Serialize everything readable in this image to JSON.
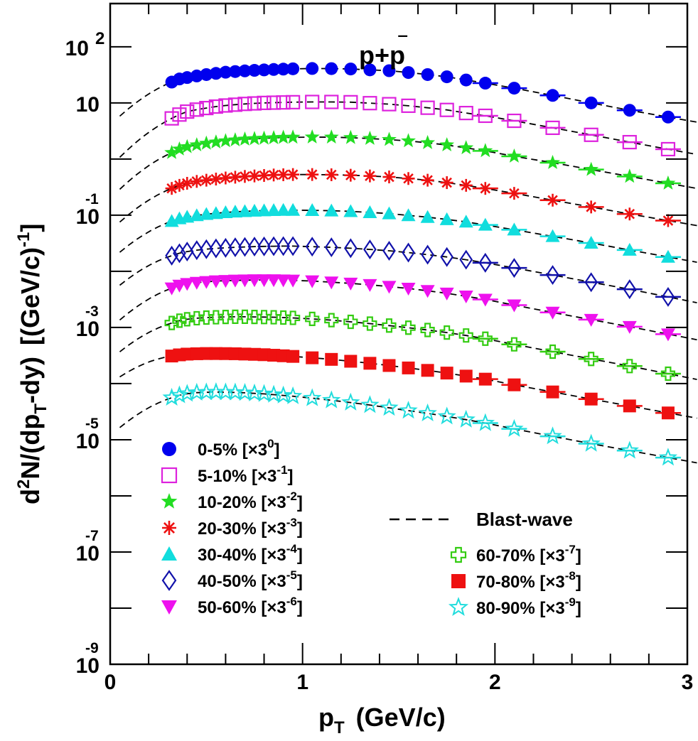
{
  "chart_data": {
    "type": "scatter",
    "title": "p+p̄",
    "title_main": "p+p",
    "title_bar": "‾",
    "xlabel": "p_T  (GeV/c)",
    "xlabel_parts": {
      "base": "p",
      "sub": "T",
      "rest": "(GeV/c)"
    },
    "ylabel": "d²N/(dp_T dy)  [(GeV/c)⁻¹]",
    "ylabel_parts": {
      "d": "d",
      "two": "2",
      "n": "N/(dp",
      "t": "T",
      "dy": "-dy)",
      "units": "[(GeV/c)",
      "m1": "-1",
      "close": "]"
    },
    "xlim": [
      0,
      3
    ],
    "ylim_log10": [
      -9,
      3
    ],
    "yscale": "log",
    "x_ticks": [
      0,
      1,
      2,
      3
    ],
    "x_tick_labels": [
      "0",
      "1",
      "2",
      "3"
    ],
    "y_tick_labels": [
      {
        "exponent": 2,
        "base": "10",
        "sup": "2"
      },
      {
        "exponent": 1,
        "base": "10",
        "sup": ""
      },
      {
        "exponent": -1,
        "base": "10",
        "sup": "-1"
      },
      {
        "exponent": -3,
        "base": "10",
        "sup": "-3"
      },
      {
        "exponent": -5,
        "base": "10",
        "sup": "-5"
      },
      {
        "exponent": -7,
        "base": "10",
        "sup": "-7"
      },
      {
        "exponent": -9,
        "base": "10",
        "sup": "-9"
      }
    ],
    "fit_label": "Blast-wave",
    "x": [
      0.32,
      0.36,
      0.4,
      0.45,
      0.5,
      0.55,
      0.6,
      0.65,
      0.7,
      0.75,
      0.8,
      0.85,
      0.9,
      0.95,
      1.05,
      1.15,
      1.25,
      1.35,
      1.45,
      1.55,
      1.65,
      1.75,
      1.85,
      1.95,
      2.1,
      2.3,
      2.5,
      2.7,
      2.9
    ],
    "series": [
      {
        "name": "0-5%",
        "label": "0-5% [×3",
        "scale": "0",
        "color": "#0000ee",
        "marker": "circle",
        "values": [
          23.5,
          26.7,
          28.3,
          30.2,
          32.0,
          33.6,
          35.2,
          36.2,
          37.2,
          38.0,
          38.7,
          39.4,
          40.0,
          40.5,
          41.0,
          40.8,
          40.2,
          38.8,
          37.5,
          34.8,
          32.0,
          29.2,
          25.6,
          22.5,
          18.3,
          13.6,
          10.0,
          7.4,
          5.6
        ]
      },
      {
        "name": "5-10%",
        "label": "5-10% [×3",
        "scale": "-1",
        "color": "#dd22dd",
        "marker": "open-square",
        "values": [
          5.3,
          6.2,
          7.0,
          7.6,
          8.1,
          8.6,
          9.0,
          9.3,
          9.6,
          9.8,
          10.0,
          10.1,
          10.2,
          10.3,
          10.4,
          10.4,
          10.3,
          9.9,
          9.5,
          8.9,
          8.2,
          7.5,
          6.6,
          5.9,
          4.8,
          3.6,
          2.7,
          2.0,
          1.5
        ]
      },
      {
        "name": "10-20%",
        "label": "10-20% [×3",
        "scale": "-2",
        "color": "#22dd22",
        "marker": "star",
        "values": [
          1.3,
          1.5,
          1.65,
          1.78,
          1.9,
          2.0,
          2.1,
          2.18,
          2.25,
          2.3,
          2.34,
          2.38,
          2.42,
          2.44,
          2.46,
          2.45,
          2.4,
          2.32,
          2.22,
          2.1,
          1.95,
          1.78,
          1.58,
          1.4,
          1.12,
          0.86,
          0.65,
          0.49,
          0.37
        ]
      },
      {
        "name": "20-30%",
        "label": "20-30% [×3",
        "scale": "-3",
        "color": "#ee1111",
        "marker": "asterisk",
        "values": [
          0.3,
          0.34,
          0.37,
          0.4,
          0.42,
          0.44,
          0.46,
          0.475,
          0.49,
          0.5,
          0.51,
          0.52,
          0.525,
          0.53,
          0.53,
          0.525,
          0.515,
          0.5,
          0.48,
          0.45,
          0.42,
          0.38,
          0.34,
          0.3,
          0.245,
          0.185,
          0.14,
          0.105,
          0.08
        ]
      },
      {
        "name": "30-40%",
        "label": "30-40% [×3",
        "scale": "-4",
        "color": "#11dddd",
        "marker": "triangle",
        "values": [
          0.078,
          0.087,
          0.093,
          0.099,
          0.104,
          0.108,
          0.112,
          0.115,
          0.117,
          0.119,
          0.121,
          0.122,
          0.123,
          0.123,
          0.122,
          0.12,
          0.117,
          0.112,
          0.107,
          0.099,
          0.092,
          0.084,
          0.076,
          0.067,
          0.055,
          0.042,
          0.032,
          0.024,
          0.018
        ]
      },
      {
        "name": "40-50%",
        "label": "40-50% [×3",
        "scale": "-5",
        "color": "#1111aa",
        "marker": "open-diamond",
        "values": [
          0.019,
          0.021,
          0.0225,
          0.0238,
          0.0248,
          0.0256,
          0.0262,
          0.0268,
          0.0272,
          0.0276,
          0.0278,
          0.028,
          0.0281,
          0.0281,
          0.0275,
          0.0268,
          0.0258,
          0.0245,
          0.0232,
          0.0216,
          0.0198,
          0.018,
          0.0161,
          0.0142,
          0.0115,
          0.0086,
          0.0064,
          0.0048,
          0.0035
        ]
      },
      {
        "name": "50-60%",
        "label": "50-60% [×3",
        "scale": "-6",
        "color": "#ee11ee",
        "marker": "inv-triangle",
        "values": [
          0.005,
          0.0056,
          0.006,
          0.0063,
          0.0065,
          0.0067,
          0.0068,
          0.0069,
          0.00695,
          0.007,
          0.007,
          0.007,
          0.00695,
          0.0069,
          0.0067,
          0.0064,
          0.0061,
          0.00575,
          0.00535,
          0.00495,
          0.0045,
          0.00405,
          0.0036,
          0.00315,
          0.0025,
          0.00185,
          0.00138,
          0.00103,
          0.00076
        ]
      },
      {
        "name": "60-70%",
        "label": "60-70% [×3",
        "scale": "-7",
        "color": "#33cc11",
        "marker": "open-cross",
        "values": [
          0.0012,
          0.00132,
          0.0014,
          0.00146,
          0.0015,
          0.00152,
          0.00154,
          0.00155,
          0.00155,
          0.00154,
          0.00153,
          0.00152,
          0.0015,
          0.00148,
          0.00142,
          0.00135,
          0.00126,
          0.00117,
          0.00108,
          0.00099,
          0.0009,
          0.00081,
          0.00072,
          0.00063,
          0.0005,
          0.00037,
          0.000275,
          0.000205,
          0.00015
        ]
      },
      {
        "name": "70-80%",
        "label": "70-80% [×3",
        "scale": "-8",
        "color": "#ee1111",
        "marker": "square",
        "values": [
          0.00031,
          0.000325,
          0.000335,
          0.00034,
          0.000343,
          0.000343,
          0.000342,
          0.00034,
          0.000336,
          0.000332,
          0.000327,
          0.00032,
          0.000313,
          0.000305,
          0.000288,
          0.00027,
          0.00025,
          0.00023,
          0.00021,
          0.00019,
          0.000172,
          0.000154,
          0.000136,
          0.00012,
          9.5e-05,
          7.1e-05,
          5.3e-05,
          4e-05,
          3e-05
        ]
      },
      {
        "name": "80-90%",
        "label": "80-90% [×3",
        "scale": "-9",
        "color": "#22dddd",
        "marker": "open-star",
        "values": [
          5.6e-05,
          6.2e-05,
          6.6e-05,
          6.9e-05,
          7e-05,
          7.05e-05,
          7e-05,
          6.95e-05,
          6.85e-05,
          6.7e-05,
          6.55e-05,
          6.35e-05,
          6.15e-05,
          5.95e-05,
          5.5e-05,
          5.05e-05,
          4.6e-05,
          4.15e-05,
          3.7e-05,
          3.3e-05,
          2.95e-05,
          2.6e-05,
          2.28e-05,
          1.98e-05,
          1.56e-05,
          1.15e-05,
          8.5e-06,
          6.4e-06,
          4.8e-06
        ]
      }
    ]
  }
}
